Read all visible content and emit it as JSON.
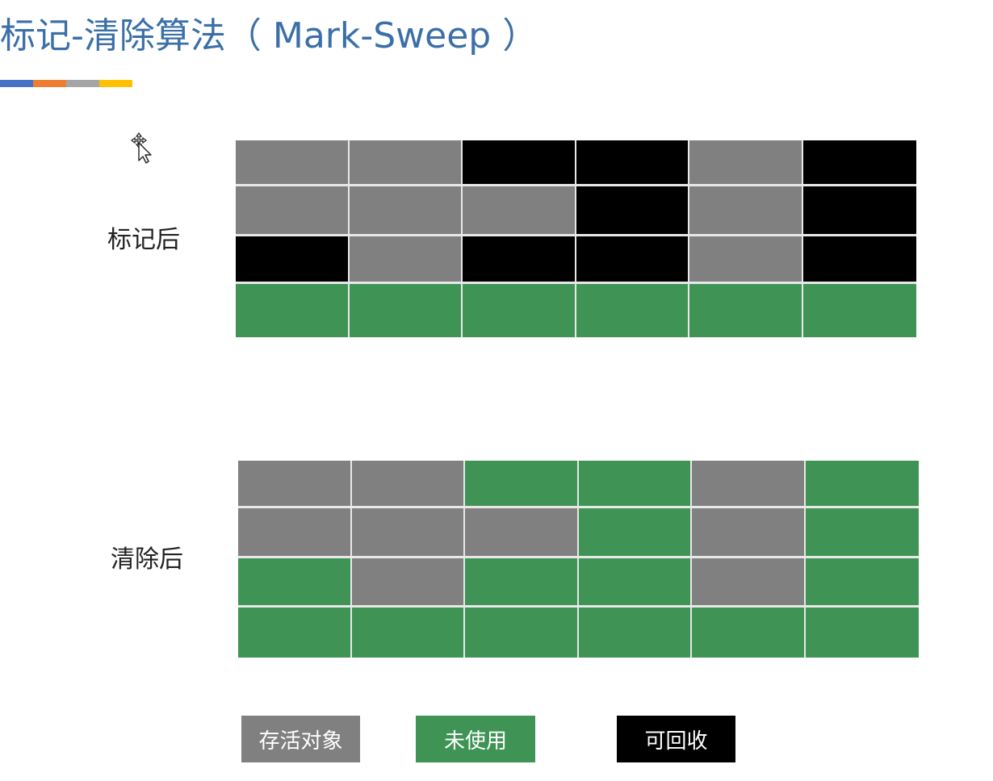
{
  "title": "标记-清除算法（ Mark-Sweep ）",
  "accent_colors": [
    "#4472c4",
    "#ed7d31",
    "#a5a5a5",
    "#ffc000"
  ],
  "cursor_icon": "move-cursor-icon",
  "colors": {
    "live": "#808080",
    "unused": "#3f9455",
    "reclaimable": "#000000"
  },
  "sections": {
    "after_mark": {
      "label": "标记后",
      "rows": [
        [
          "live",
          "live",
          "reclaimable",
          "reclaimable",
          "live",
          "reclaimable"
        ],
        [
          "live",
          "live",
          "live",
          "reclaimable",
          "live",
          "reclaimable"
        ],
        [
          "reclaimable",
          "live",
          "reclaimable",
          "reclaimable",
          "live",
          "reclaimable"
        ],
        [
          "unused",
          "unused",
          "unused",
          "unused",
          "unused",
          "unused"
        ]
      ]
    },
    "after_sweep": {
      "label": "清除后",
      "rows": [
        [
          "live",
          "live",
          "unused",
          "unused",
          "live",
          "unused"
        ],
        [
          "live",
          "live",
          "live",
          "unused",
          "live",
          "unused"
        ],
        [
          "unused",
          "live",
          "unused",
          "unused",
          "live",
          "unused"
        ],
        [
          "unused",
          "unused",
          "unused",
          "unused",
          "unused",
          "unused"
        ]
      ]
    }
  },
  "legend": {
    "live_label": "存活对象",
    "unused_label": "未使用",
    "reclaimable_label": "可回收"
  }
}
